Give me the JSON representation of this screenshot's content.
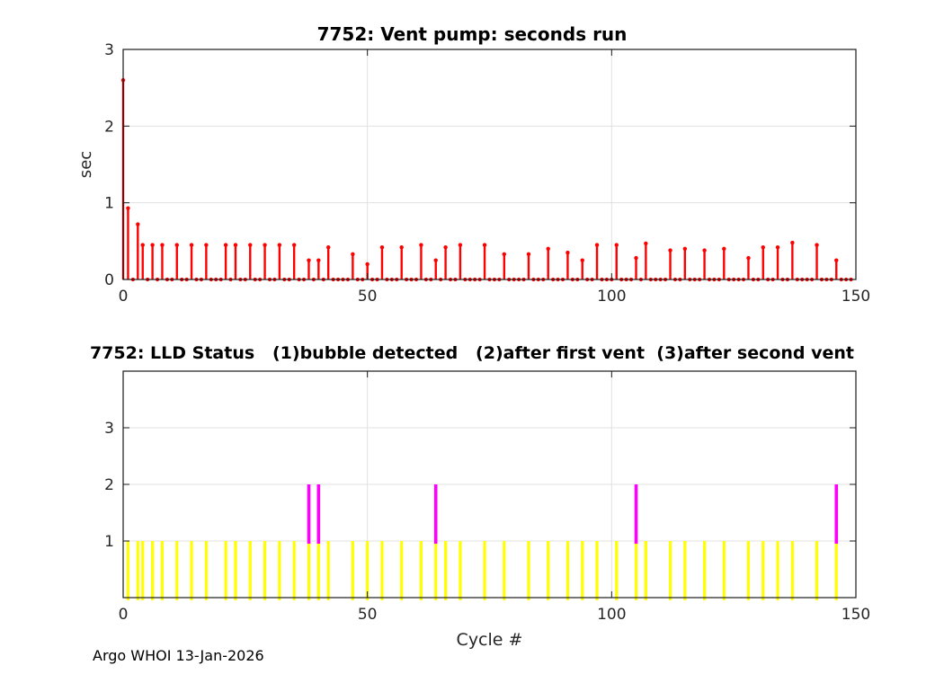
{
  "figure": {
    "footer": "Argo WHOI 13-Jan-2026"
  },
  "chart_data": [
    {
      "type": "stem",
      "title": "7752: Vent pump: seconds run",
      "ylabel": "sec",
      "xlim": [
        0,
        150
      ],
      "ylim": [
        0,
        3
      ],
      "xticks": [
        0,
        50,
        100,
        150
      ],
      "yticks": [
        0,
        1,
        2,
        3
      ],
      "grid": true,
      "color": "#ff0000",
      "n_cycles": 150,
      "note": "cycles not listed have value 0 (shown as dots on baseline)",
      "points": [
        [
          0,
          2.6
        ],
        [
          1,
          0.93
        ],
        [
          3,
          0.72
        ],
        [
          4,
          0.45
        ],
        [
          6,
          0.45
        ],
        [
          8,
          0.45
        ],
        [
          11,
          0.45
        ],
        [
          14,
          0.45
        ],
        [
          17,
          0.45
        ],
        [
          21,
          0.45
        ],
        [
          23,
          0.45
        ],
        [
          26,
          0.45
        ],
        [
          29,
          0.45
        ],
        [
          32,
          0.45
        ],
        [
          35,
          0.45
        ],
        [
          38,
          0.25
        ],
        [
          40,
          0.25
        ],
        [
          42,
          0.42
        ],
        [
          47,
          0.33
        ],
        [
          50,
          0.2
        ],
        [
          53,
          0.42
        ],
        [
          57,
          0.42
        ],
        [
          61,
          0.45
        ],
        [
          64,
          0.25
        ],
        [
          66,
          0.42
        ],
        [
          69,
          0.45
        ],
        [
          74,
          0.45
        ],
        [
          78,
          0.33
        ],
        [
          83,
          0.33
        ],
        [
          87,
          0.4
        ],
        [
          91,
          0.35
        ],
        [
          94,
          0.25
        ],
        [
          97,
          0.45
        ],
        [
          101,
          0.45
        ],
        [
          105,
          0.28
        ],
        [
          107,
          0.47
        ],
        [
          112,
          0.38
        ],
        [
          115,
          0.4
        ],
        [
          119,
          0.38
        ],
        [
          123,
          0.4
        ],
        [
          128,
          0.28
        ],
        [
          131,
          0.42
        ],
        [
          134,
          0.42
        ],
        [
          137,
          0.48
        ],
        [
          142,
          0.45
        ],
        [
          146,
          0.25
        ]
      ]
    },
    {
      "type": "bar",
      "title": "7752: LLD Status   (1)bubble detected   (2)after first vent  (3)after second vent",
      "xlabel": "Cycle #",
      "xlim": [
        0,
        150
      ],
      "ylim": [
        0,
        4
      ],
      "xticks": [
        0,
        50,
        100,
        150
      ],
      "yticks": [
        1,
        2,
        3
      ],
      "grid": true,
      "series": [
        {
          "name": "status 1 - bubble detected",
          "color": "#ffff00",
          "from": 0,
          "to": 1,
          "cycles": [
            1,
            3,
            4,
            6,
            8,
            11,
            14,
            17,
            21,
            23,
            26,
            29,
            32,
            35,
            38,
            40,
            42,
            47,
            50,
            53,
            57,
            61,
            64,
            66,
            69,
            74,
            78,
            83,
            87,
            91,
            94,
            97,
            101,
            105,
            107,
            112,
            115,
            119,
            123,
            128,
            131,
            134,
            137,
            142,
            146
          ]
        },
        {
          "name": "status 2 - after first vent",
          "color": "#ff00ff",
          "from": 1,
          "to": 2,
          "cycles": [
            38,
            40,
            64,
            105,
            146
          ]
        }
      ]
    }
  ]
}
